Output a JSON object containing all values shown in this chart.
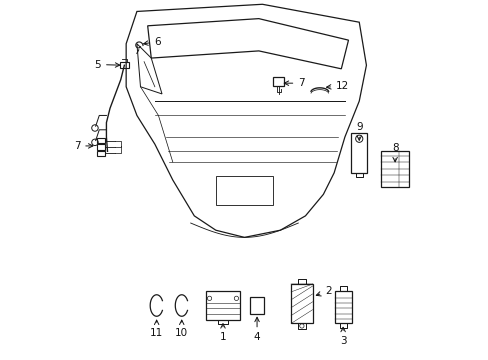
{
  "bg_color": "#ffffff",
  "line_color": "#1a1a1a",
  "figure_width": 4.89,
  "figure_height": 3.6,
  "dpi": 100,
  "labels": {
    "1": [
      0.445,
      0.055,
      0.445,
      0.022,
      "center",
      "top"
    ],
    "2": [
      0.68,
      0.115,
      0.72,
      0.13,
      "left",
      "center"
    ],
    "3": [
      0.87,
      0.055,
      0.87,
      0.022,
      "center",
      "top"
    ],
    "4": [
      0.53,
      0.085,
      0.53,
      0.022,
      "center",
      "top"
    ],
    "5": [
      0.13,
      0.81,
      0.085,
      0.81,
      "right",
      "center"
    ],
    "6": [
      0.22,
      0.87,
      0.255,
      0.878,
      "left",
      "center"
    ],
    "7a": [
      0.62,
      0.74,
      0.66,
      0.745,
      "left",
      "center"
    ],
    "7b": [
      0.075,
      0.58,
      0.04,
      0.58,
      "right",
      "center"
    ],
    "8": [
      0.92,
      0.52,
      0.92,
      0.495,
      "center",
      "top"
    ],
    "9": [
      0.81,
      0.62,
      0.81,
      0.65,
      "center",
      "bottom"
    ],
    "10": [
      0.33,
      0.08,
      0.33,
      0.045,
      "center",
      "top"
    ],
    "11": [
      0.255,
      0.08,
      0.255,
      0.045,
      "center",
      "top"
    ],
    "12": [
      0.73,
      0.73,
      0.76,
      0.74,
      "left",
      "center"
    ]
  }
}
